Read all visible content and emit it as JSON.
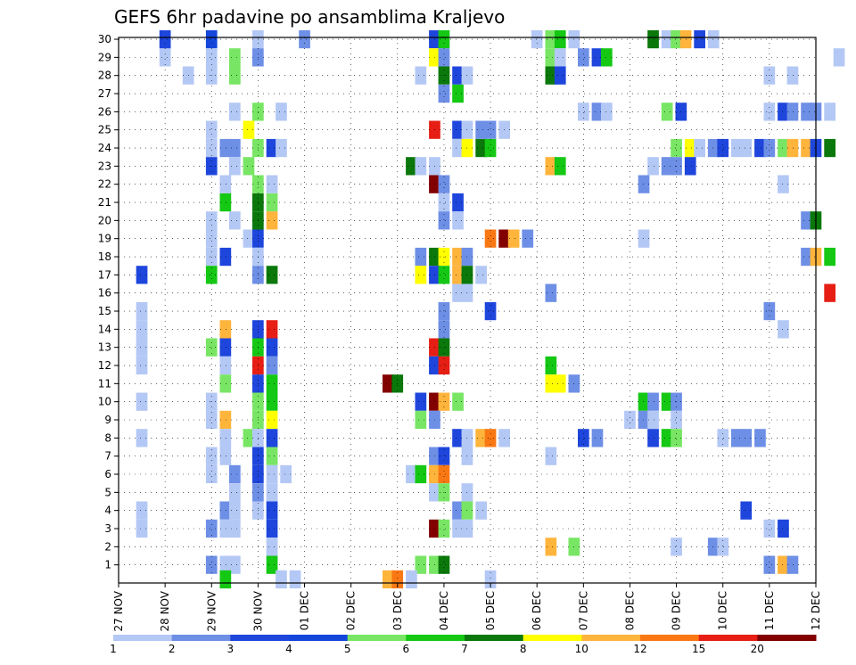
{
  "chart_data": {
    "type": "heatmap",
    "title": "GEFS 6hr padavine po ansamblima Kraljevo",
    "xlabel": "",
    "ylabel": "",
    "x_tick_labels": [
      "27 NOV",
      "28 NOV",
      "29 NOV",
      "30 NOV",
      "01 DEC",
      "02 DEC",
      "03 DEC",
      "04 DEC",
      "05 DEC",
      "06 DEC",
      "07 DEC",
      "08 DEC",
      "09 DEC",
      "10 DEC",
      "11 DEC",
      "12 DEC"
    ],
    "y_tick_labels": [
      "1",
      "2",
      "3",
      "4",
      "5",
      "6",
      "7",
      "8",
      "9",
      "10",
      "11",
      "12",
      "13",
      "14",
      "15",
      "16",
      "17",
      "18",
      "19",
      "20",
      "21",
      "22",
      "23",
      "24",
      "25",
      "26",
      "27",
      "28",
      "29",
      "30"
    ],
    "ylim": [
      0,
      30
    ],
    "grid": true,
    "colorbar": {
      "labels": [
        "1",
        "2",
        "3",
        "4",
        "5",
        "6",
        "7",
        "8",
        "10",
        "12",
        "15",
        "20"
      ],
      "colors": [
        "#B4C8F5",
        "#6E8FE6",
        "#1E46DC",
        "#1446DC",
        "#78E664",
        "#14C814",
        "#0A780A",
        "#FFFF00",
        "#FFB43C",
        "#FA7814",
        "#E61E14",
        "#820000"
      ]
    },
    "cells": [
      [
        17,
        0.5,
        3
      ],
      [
        29,
        1,
        1
      ],
      [
        30,
        1,
        3
      ],
      [
        30,
        2,
        4
      ],
      [
        30,
        3,
        1
      ],
      [
        30,
        4,
        2
      ],
      [
        29,
        2,
        1
      ],
      [
        29,
        2.5,
        5
      ],
      [
        29,
        3,
        2
      ],
      [
        28,
        1.5,
        1
      ],
      [
        28,
        2,
        1
      ],
      [
        28,
        2.5,
        5
      ],
      [
        26,
        2.5,
        1
      ],
      [
        26,
        3,
        5
      ],
      [
        26,
        3.5,
        1
      ],
      [
        25,
        2,
        1
      ],
      [
        25,
        2.8,
        8
      ],
      [
        24,
        2,
        1
      ],
      [
        24,
        2.3,
        2
      ],
      [
        24,
        2.5,
        2
      ],
      [
        24,
        3,
        5
      ],
      [
        24,
        3.3,
        3
      ],
      [
        24,
        3.5,
        1
      ],
      [
        23,
        2,
        3
      ],
      [
        23,
        2.5,
        1
      ],
      [
        23,
        2.8,
        5
      ],
      [
        22,
        2.3,
        1
      ],
      [
        22,
        3,
        5
      ],
      [
        22,
        3.3,
        1
      ],
      [
        21,
        2.3,
        6
      ],
      [
        21,
        3,
        7
      ],
      [
        21,
        3.3,
        5
      ],
      [
        20,
        2,
        1
      ],
      [
        20,
        2.5,
        1
      ],
      [
        20,
        3,
        7
      ],
      [
        20,
        3.3,
        9
      ],
      [
        19,
        2,
        1
      ],
      [
        19,
        2.8,
        1
      ],
      [
        19,
        3,
        3
      ],
      [
        18,
        2,
        1
      ],
      [
        18,
        2.3,
        3
      ],
      [
        18,
        3,
        1
      ],
      [
        17,
        2,
        6
      ],
      [
        17,
        3,
        2
      ],
      [
        17,
        3.3,
        7
      ],
      [
        15,
        0.5,
        1
      ],
      [
        14,
        0.5,
        1
      ],
      [
        14,
        2.3,
        9
      ],
      [
        14,
        3,
        3
      ],
      [
        14,
        3.3,
        11
      ],
      [
        13,
        0.5,
        1
      ],
      [
        13,
        2,
        5
      ],
      [
        13,
        2.3,
        3
      ],
      [
        13,
        3,
        6
      ],
      [
        13,
        3.3,
        3
      ],
      [
        12,
        0.5,
        1
      ],
      [
        12,
        2.3,
        1
      ],
      [
        12,
        3,
        11
      ],
      [
        12,
        3.3,
        2
      ],
      [
        11,
        2.3,
        5
      ],
      [
        11,
        3,
        3
      ],
      [
        11,
        3.3,
        6
      ],
      [
        10,
        0.5,
        1
      ],
      [
        10,
        2,
        1
      ],
      [
        10,
        3,
        5
      ],
      [
        10,
        3.3,
        6
      ],
      [
        9,
        2,
        1
      ],
      [
        9,
        2.3,
        9
      ],
      [
        9,
        3,
        5
      ],
      [
        9,
        3.3,
        8
      ],
      [
        8,
        0.5,
        1
      ],
      [
        8,
        2.3,
        1
      ],
      [
        8,
        2.8,
        5
      ],
      [
        8,
        3,
        1
      ],
      [
        8,
        3.3,
        3
      ],
      [
        7,
        2,
        1
      ],
      [
        7,
        2.3,
        1
      ],
      [
        7,
        3,
        3
      ],
      [
        7,
        3.3,
        5
      ],
      [
        6,
        2,
        1
      ],
      [
        6,
        2.5,
        2
      ],
      [
        6,
        3,
        3
      ],
      [
        6,
        3.3,
        1
      ],
      [
        6,
        3.6,
        1
      ],
      [
        5,
        2.5,
        1
      ],
      [
        5,
        3,
        2
      ],
      [
        5,
        3.3,
        1
      ],
      [
        4,
        0.5,
        1
      ],
      [
        4,
        2.3,
        2
      ],
      [
        4,
        2.5,
        1
      ],
      [
        4,
        3,
        1
      ],
      [
        4,
        3.3,
        3
      ],
      [
        3,
        0.5,
        1
      ],
      [
        3,
        2,
        2
      ],
      [
        3,
        2.3,
        1
      ],
      [
        3,
        2.5,
        1
      ],
      [
        3,
        3.3,
        3
      ],
      [
        2,
        3.3,
        1
      ],
      [
        1,
        2,
        2
      ],
      [
        1,
        2.3,
        1
      ],
      [
        1,
        2.5,
        1
      ],
      [
        1,
        3.3,
        6
      ],
      [
        0.2,
        2.3,
        6
      ],
      [
        0.2,
        3.5,
        1
      ],
      [
        0.2,
        3.8,
        1
      ],
      [
        30,
        6.8,
        3
      ],
      [
        30,
        7,
        6
      ],
      [
        29,
        6.8,
        8
      ],
      [
        29,
        7,
        2
      ],
      [
        28,
        6.5,
        1
      ],
      [
        28,
        7,
        7
      ],
      [
        28,
        7.3,
        3
      ],
      [
        28,
        7.5,
        1
      ],
      [
        27,
        7,
        2
      ],
      [
        27,
        7.3,
        6
      ],
      [
        25,
        6.8,
        11
      ],
      [
        25,
        7.3,
        3
      ],
      [
        25,
        7.5,
        1
      ],
      [
        25,
        7.8,
        2
      ],
      [
        25,
        8,
        2
      ],
      [
        25,
        8.3,
        1
      ],
      [
        24,
        7.3,
        1
      ],
      [
        24,
        7.5,
        8
      ],
      [
        24,
        7.8,
        7
      ],
      [
        24,
        8,
        6
      ],
      [
        23,
        6.3,
        7
      ],
      [
        23,
        6.5,
        1
      ],
      [
        23,
        6.8,
        1
      ],
      [
        22,
        6.8,
        12
      ],
      [
        22,
        7,
        2
      ],
      [
        21,
        7,
        1
      ],
      [
        21,
        7.3,
        3
      ],
      [
        20,
        7,
        2
      ],
      [
        20,
        7.3,
        1
      ],
      [
        18,
        6.5,
        2
      ],
      [
        18,
        6.8,
        7
      ],
      [
        18,
        7,
        8
      ],
      [
        18,
        7.3,
        9
      ],
      [
        18,
        7.5,
        2
      ],
      [
        17,
        6.5,
        8
      ],
      [
        17,
        6.8,
        3
      ],
      [
        17,
        7,
        6
      ],
      [
        17,
        7.3,
        9
      ],
      [
        17,
        7.5,
        7
      ],
      [
        17,
        7.8,
        1
      ],
      [
        16,
        7.3,
        1
      ],
      [
        16,
        7.5,
        1
      ],
      [
        15,
        7,
        2
      ],
      [
        15,
        8,
        3
      ],
      [
        14,
        7,
        2
      ],
      [
        13,
        6.8,
        11
      ],
      [
        13,
        7,
        7
      ],
      [
        12,
        6.8,
        3
      ],
      [
        12,
        7,
        11
      ],
      [
        11,
        5.8,
        12
      ],
      [
        11,
        6,
        7
      ],
      [
        10,
        6.5,
        3
      ],
      [
        10,
        6.8,
        12
      ],
      [
        10,
        7,
        9
      ],
      [
        10,
        7.3,
        5
      ],
      [
        9,
        6.5,
        5
      ],
      [
        9,
        6.8,
        2
      ],
      [
        8,
        7.3,
        3
      ],
      [
        8,
        7.5,
        1
      ],
      [
        8,
        7.8,
        9
      ],
      [
        8,
        8,
        10
      ],
      [
        8,
        8.3,
        1
      ],
      [
        7,
        6.8,
        2
      ],
      [
        7,
        7,
        3
      ],
      [
        7,
        7.5,
        1
      ],
      [
        6,
        6.3,
        1
      ],
      [
        6,
        6.5,
        6
      ],
      [
        6,
        6.8,
        9
      ],
      [
        6,
        7,
        10
      ],
      [
        5,
        6.8,
        1
      ],
      [
        5,
        7,
        5
      ],
      [
        5,
        7.5,
        1
      ],
      [
        4,
        7.3,
        2
      ],
      [
        4,
        7.5,
        5
      ],
      [
        4,
        7.8,
        1
      ],
      [
        3,
        6.8,
        12
      ],
      [
        3,
        7,
        5
      ],
      [
        3,
        7.3,
        1
      ],
      [
        3,
        7.5,
        1
      ],
      [
        1,
        6.5,
        5
      ],
      [
        1,
        6.8,
        5
      ],
      [
        1,
        7,
        7
      ],
      [
        0.2,
        5.8,
        9
      ],
      [
        0.2,
        6,
        10
      ],
      [
        0.2,
        6.3,
        1
      ],
      [
        0.2,
        8,
        1
      ],
      [
        19,
        8,
        10
      ],
      [
        19,
        8.3,
        12
      ],
      [
        19,
        8.5,
        9
      ],
      [
        19,
        8.8,
        2
      ],
      [
        30,
        9,
        1
      ],
      [
        30,
        9.3,
        5
      ],
      [
        30,
        9.5,
        6
      ],
      [
        30,
        9.8,
        1
      ],
      [
        29,
        9.3,
        5
      ],
      [
        29,
        9.5,
        1
      ],
      [
        29,
        10,
        2
      ],
      [
        29,
        10.3,
        3
      ],
      [
        29,
        10.5,
        6
      ],
      [
        28,
        9.3,
        7
      ],
      [
        28,
        9.5,
        3
      ],
      [
        26,
        10,
        1
      ],
      [
        26,
        10.3,
        2
      ],
      [
        26,
        10.5,
        1
      ],
      [
        23,
        9.3,
        9
      ],
      [
        23,
        9.5,
        6
      ],
      [
        16,
        9.3,
        2
      ],
      [
        12,
        9.3,
        6
      ],
      [
        11,
        9.3,
        8
      ],
      [
        11,
        9.5,
        8
      ],
      [
        11,
        9.8,
        2
      ],
      [
        8,
        10,
        3
      ],
      [
        8,
        10.3,
        2
      ],
      [
        7,
        9.3,
        1
      ],
      [
        2,
        9.3,
        9
      ],
      [
        2,
        9.8,
        5
      ],
      [
        30,
        11.5,
        7
      ],
      [
        30,
        11.8,
        1
      ],
      [
        30,
        12,
        5
      ],
      [
        30,
        12.2,
        9
      ],
      [
        30,
        12.5,
        3
      ],
      [
        30,
        12.8,
        1
      ],
      [
        26,
        11.8,
        5
      ],
      [
        26,
        12.1,
        3
      ],
      [
        24,
        12,
        5
      ],
      [
        24,
        12.3,
        8
      ],
      [
        24,
        12.5,
        1
      ],
      [
        24,
        12.8,
        2
      ],
      [
        24,
        13,
        3
      ],
      [
        24,
        13.3,
        1
      ],
      [
        24,
        13.5,
        1
      ],
      [
        24,
        13.8,
        3
      ],
      [
        24,
        14,
        2
      ],
      [
        24,
        14.3,
        5
      ],
      [
        24,
        14.5,
        9
      ],
      [
        24,
        14.8,
        9
      ],
      [
        24,
        15,
        3
      ],
      [
        24,
        15.3,
        7
      ],
      [
        23,
        11.5,
        1
      ],
      [
        23,
        11.8,
        2
      ],
      [
        23,
        12,
        2
      ],
      [
        23,
        12.3,
        3
      ],
      [
        22,
        11.3,
        2
      ],
      [
        19,
        11.3,
        1
      ],
      [
        10,
        11.3,
        6
      ],
      [
        10,
        11.5,
        2
      ],
      [
        10,
        11.8,
        6
      ],
      [
        10,
        12,
        2
      ],
      [
        9,
        11,
        1
      ],
      [
        9,
        11.3,
        2
      ],
      [
        9,
        11.5,
        1
      ],
      [
        9,
        12,
        1
      ],
      [
        8,
        11.5,
        3
      ],
      [
        8,
        11.8,
        6
      ],
      [
        8,
        12,
        5
      ],
      [
        8,
        13,
        1
      ],
      [
        8,
        13.3,
        2
      ],
      [
        8,
        13.5,
        2
      ],
      [
        8,
        13.8,
        2
      ],
      [
        4,
        13.5,
        3
      ],
      [
        2,
        12,
        1
      ],
      [
        2,
        12.8,
        2
      ],
      [
        2,
        13,
        1
      ],
      [
        29,
        15.5,
        1
      ],
      [
        28,
        14,
        1
      ],
      [
        28,
        14.5,
        1
      ],
      [
        26,
        14,
        1
      ],
      [
        26,
        14.3,
        3
      ],
      [
        26,
        14.5,
        2
      ],
      [
        26,
        14.8,
        2
      ],
      [
        26,
        15,
        2
      ],
      [
        26,
        15.3,
        1
      ],
      [
        22,
        14.3,
        1
      ],
      [
        20,
        14.8,
        2
      ],
      [
        20,
        15,
        7
      ],
      [
        18,
        14.8,
        2
      ],
      [
        18,
        15,
        9
      ],
      [
        18,
        15.3,
        6
      ],
      [
        16,
        15.3,
        11
      ],
      [
        15,
        14,
        2
      ],
      [
        14,
        14.3,
        1
      ],
      [
        3,
        14,
        1
      ],
      [
        3,
        14.3,
        3
      ],
      [
        1,
        14,
        2
      ],
      [
        1,
        14.3,
        9
      ],
      [
        1,
        14.5,
        2
      ]
    ]
  }
}
